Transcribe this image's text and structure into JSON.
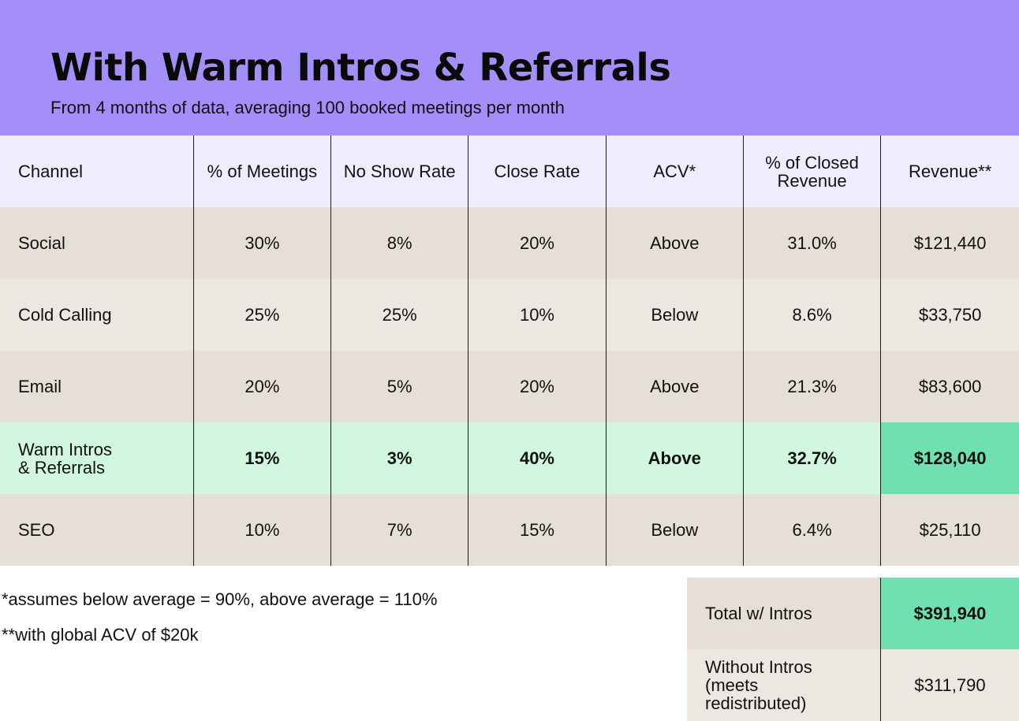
{
  "header": {
    "title": "With Warm Intros & Referrals",
    "subtitle": "From 4 months of data, averaging 100 booked meetings per month",
    "background": "#a48ff9"
  },
  "table": {
    "columns": [
      "Channel",
      "% of Meetings",
      "No Show Rate",
      "Close Rate",
      "ACV*",
      "% of Closed\nRevenue",
      "Revenue**"
    ],
    "rows": [
      {
        "channel": "Social",
        "meetings": "30%",
        "no_show": "8%",
        "close": "20%",
        "acv": "Above",
        "closed_rev": "31.0%",
        "revenue": "$121,440"
      },
      {
        "channel": "Cold Calling",
        "meetings": "25%",
        "no_show": "25%",
        "close": "10%",
        "acv": "Below",
        "closed_rev": "8.6%",
        "revenue": "$33,750"
      },
      {
        "channel": "Email",
        "meetings": "20%",
        "no_show": "5%",
        "close": "20%",
        "acv": "Above",
        "closed_rev": "21.3%",
        "revenue": "$83,600"
      },
      {
        "channel": "Warm Intros\n& Referrals",
        "meetings": "15%",
        "no_show": "3%",
        "close": "40%",
        "acv": "Above",
        "closed_rev": "32.7%",
        "revenue": "$128,040",
        "highlighted": true
      },
      {
        "channel": "SEO",
        "meetings": "10%",
        "no_show": "7%",
        "close": "15%",
        "acv": "Below",
        "closed_rev": "6.4%",
        "revenue": "$25,110"
      }
    ],
    "colors": {
      "header_bg": "#eeecfd",
      "row_a": "#e6dfd6",
      "row_b": "#ece8e1",
      "highlight_row": "#d1f7de",
      "highlight_cell": "#6fe1b0"
    }
  },
  "footnotes": {
    "acv_note": "*assumes below average = 90%, above average = 110%",
    "revenue_note": "**with global ACV of $20k"
  },
  "totals": {
    "with_label": "Total w/ Intros",
    "with_value": "$391,940",
    "without_label": "Without Intros\n(meets\nredistributed)",
    "without_value": "$311,790"
  }
}
